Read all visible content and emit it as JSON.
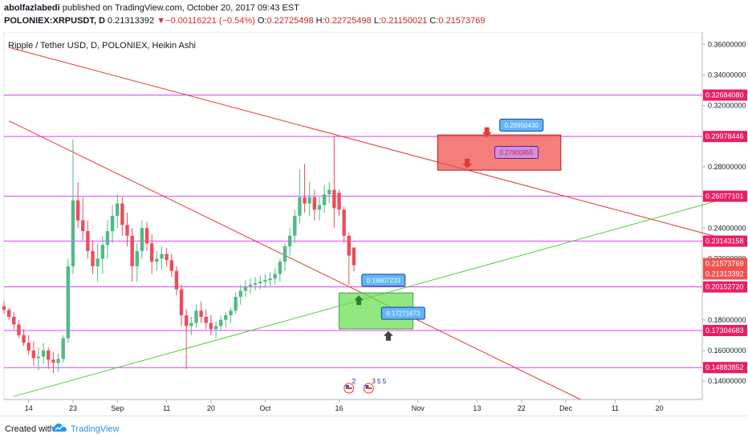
{
  "header": {
    "author": "abolfazlabedi",
    "published": "published on TradingView.com, October 20, 2017 09:43 EST",
    "symbol": "POLONIEX:XRPUSDT, D",
    "last": "0.21313392",
    "change_arrow": "▼",
    "change": "−0.00116221 (−0.54%)",
    "o_label": "O:",
    "o": "0.22725498",
    "h_label": "H:",
    "h": "0.22725498",
    "l_label": "L:",
    "l": "0.21150021",
    "c_label": "C:",
    "c": "0.21573769"
  },
  "footer": {
    "created_with": "Created with",
    "brand": "TradingView"
  },
  "colors": {
    "bull": "#53b987",
    "bear": "#eb4d5c",
    "hline": "#e040fb",
    "trend_red": "#e53935",
    "trend_green": "#4cd137",
    "label_blue": "#2196f3",
    "label_purple": "#ab47bc",
    "label_red": "#ef5350"
  },
  "chart_data": {
    "type": "candlestick",
    "title": "Ripple / Tether USD, D, POLONIEX, Heikin Ashi",
    "y_axis_ticks": [
      "0.36000000",
      "0.34000000",
      "0.32000000",
      "0.28000000",
      "0.26000000",
      "0.24000000",
      "0.22000000",
      "0.18000000",
      "0.16000000",
      "0.14000000"
    ],
    "y_axis_tick_values": [
      0.36,
      0.34,
      0.32,
      0.28,
      0.26,
      0.24,
      0.22,
      0.18,
      0.16,
      0.14
    ],
    "x_axis_ticks": [
      "14",
      "23",
      "Sep",
      "11",
      "20",
      "Oct",
      "16",
      "Nov",
      "13",
      "22",
      "Dec",
      "11",
      "20"
    ],
    "x_axis_tick_dates": [
      "2017-08-14",
      "2017-08-23",
      "2017-09-01",
      "2017-09-11",
      "2017-09-20",
      "2017-10-01",
      "2017-10-16",
      "2017-11-01",
      "2017-11-13",
      "2017-11-22",
      "2017-12-01",
      "2017-12-11",
      "2017-12-20"
    ],
    "ylim": [
      0.128,
      0.368
    ],
    "horizontal_levels": [
      {
        "value": 0.3268408,
        "label": "0.32684080"
      },
      {
        "value": 0.29978446,
        "label": "0.29978446"
      },
      {
        "value": 0.26077101,
        "label": "0.26077101"
      },
      {
        "value": 0.23143158,
        "label": "0.23143158"
      },
      {
        "value": 0.2015272,
        "label": "0.20152720"
      },
      {
        "value": 0.17304683,
        "label": "0.17304683"
      },
      {
        "value": 0.14883852,
        "label": "0.14883852"
      }
    ],
    "price_labels": [
      {
        "value": 0.21573769,
        "label": "0.21573769",
        "kind": "close"
      },
      {
        "value": 0.21313392,
        "label": "0.21313392",
        "kind": "last"
      }
    ],
    "trendlines": [
      {
        "color": "red",
        "from": {
          "date": "2017-08-10",
          "value": 0.358
        },
        "to": {
          "date": "2018-01-01",
          "value": 0.234
        }
      },
      {
        "color": "red",
        "from": {
          "date": "2017-08-10",
          "value": 0.31
        },
        "to": {
          "date": "2017-12-04",
          "value": 0.128
        }
      },
      {
        "color": "green",
        "from": {
          "date": "2017-08-11",
          "value": 0.13
        },
        "to": {
          "date": "2018-01-01",
          "value": 0.258
        }
      }
    ],
    "zones": [
      {
        "color": "red",
        "from": {
          "date": "2017-11-05",
          "value": 0.3008
        },
        "to": {
          "date": "2017-11-30",
          "value": 0.2778
        }
      },
      {
        "color": "green",
        "from": {
          "date": "2017-10-16",
          "value": 0.1976
        },
        "to": {
          "date": "2017-10-31",
          "value": 0.1741
        }
      }
    ],
    "callouts": [
      {
        "text": "0.29950430",
        "style": "blue",
        "at": {
          "date": "2017-11-22",
          "value": 0.3072
        }
      },
      {
        "text": "0.27900855",
        "style": "purple",
        "at": {
          "date": "2017-11-21",
          "value": 0.2894
        }
      },
      {
        "text": "0.19607233",
        "style": "blue",
        "at": {
          "date": "2017-10-25",
          "value": 0.2059
        }
      },
      {
        "text": "0.17271673",
        "style": "blue",
        "at": {
          "date": "2017-10-29",
          "value": 0.1843
        }
      }
    ],
    "markers": [
      {
        "dir": "down",
        "color": "red",
        "date": "2017-11-15",
        "value": 0.2995
      },
      {
        "dir": "down",
        "color": "red",
        "date": "2017-11-11",
        "value": 0.279
      },
      {
        "dir": "up",
        "color": "green",
        "date": "2017-10-20",
        "value": 0.196
      },
      {
        "dir": "up",
        "color": "dark",
        "date": "2017-10-26",
        "value": 0.1727
      }
    ],
    "event_badges": [
      {
        "date": "2017-10-18",
        "text": "2"
      },
      {
        "date": "2017-10-22",
        "text": "3 5 5"
      }
    ],
    "candles": [
      {
        "d": "2017-08-09",
        "o": 0.189,
        "h": 0.192,
        "l": 0.184,
        "c": 0.1865
      },
      {
        "d": "2017-08-10",
        "o": 0.1865,
        "h": 0.188,
        "l": 0.18,
        "c": 0.182
      },
      {
        "d": "2017-08-11",
        "o": 0.182,
        "h": 0.185,
        "l": 0.174,
        "c": 0.177
      },
      {
        "d": "2017-08-12",
        "o": 0.177,
        "h": 0.18,
        "l": 0.168,
        "c": 0.17
      },
      {
        "d": "2017-08-13",
        "o": 0.17,
        "h": 0.174,
        "l": 0.163,
        "c": 0.165
      },
      {
        "d": "2017-08-14",
        "o": 0.165,
        "h": 0.17,
        "l": 0.157,
        "c": 0.16
      },
      {
        "d": "2017-08-15",
        "o": 0.16,
        "h": 0.166,
        "l": 0.15,
        "c": 0.155
      },
      {
        "d": "2017-08-16",
        "o": 0.155,
        "h": 0.162,
        "l": 0.147,
        "c": 0.156
      },
      {
        "d": "2017-08-17",
        "o": 0.156,
        "h": 0.165,
        "l": 0.151,
        "c": 0.16
      },
      {
        "d": "2017-08-18",
        "o": 0.16,
        "h": 0.162,
        "l": 0.148,
        "c": 0.154
      },
      {
        "d": "2017-08-19",
        "o": 0.154,
        "h": 0.159,
        "l": 0.145,
        "c": 0.152
      },
      {
        "d": "2017-08-20",
        "o": 0.152,
        "h": 0.158,
        "l": 0.146,
        "c": 0.1545
      },
      {
        "d": "2017-08-21",
        "o": 0.1545,
        "h": 0.17,
        "l": 0.152,
        "c": 0.168
      },
      {
        "d": "2017-08-22",
        "o": 0.168,
        "h": 0.22,
        "l": 0.165,
        "c": 0.215
      },
      {
        "d": "2017-08-23",
        "o": 0.215,
        "h": 0.298,
        "l": 0.21,
        "c": 0.258
      },
      {
        "d": "2017-08-24",
        "o": 0.258,
        "h": 0.27,
        "l": 0.24,
        "c": 0.245
      },
      {
        "d": "2017-08-25",
        "o": 0.245,
        "h": 0.26,
        "l": 0.232,
        "c": 0.238
      },
      {
        "d": "2017-08-26",
        "o": 0.238,
        "h": 0.245,
        "l": 0.22,
        "c": 0.225
      },
      {
        "d": "2017-08-27",
        "o": 0.225,
        "h": 0.232,
        "l": 0.21,
        "c": 0.215
      },
      {
        "d": "2017-08-28",
        "o": 0.215,
        "h": 0.23,
        "l": 0.205,
        "c": 0.22
      },
      {
        "d": "2017-08-29",
        "o": 0.22,
        "h": 0.235,
        "l": 0.21,
        "c": 0.229
      },
      {
        "d": "2017-08-30",
        "o": 0.229,
        "h": 0.245,
        "l": 0.22,
        "c": 0.238
      },
      {
        "d": "2017-08-31",
        "o": 0.238,
        "h": 0.255,
        "l": 0.23,
        "c": 0.248
      },
      {
        "d": "2017-09-01",
        "o": 0.248,
        "h": 0.262,
        "l": 0.24,
        "c": 0.256
      },
      {
        "d": "2017-09-02",
        "o": 0.256,
        "h": 0.26,
        "l": 0.235,
        "c": 0.242
      },
      {
        "d": "2017-09-03",
        "o": 0.242,
        "h": 0.25,
        "l": 0.228,
        "c": 0.235
      },
      {
        "d": "2017-09-04",
        "o": 0.235,
        "h": 0.24,
        "l": 0.205,
        "c": 0.215
      },
      {
        "d": "2017-09-05",
        "o": 0.215,
        "h": 0.23,
        "l": 0.205,
        "c": 0.225
      },
      {
        "d": "2017-09-06",
        "o": 0.225,
        "h": 0.245,
        "l": 0.22,
        "c": 0.24
      },
      {
        "d": "2017-09-07",
        "o": 0.24,
        "h": 0.244,
        "l": 0.225,
        "c": 0.23
      },
      {
        "d": "2017-09-08",
        "o": 0.23,
        "h": 0.236,
        "l": 0.21,
        "c": 0.218
      },
      {
        "d": "2017-09-09",
        "o": 0.218,
        "h": 0.225,
        "l": 0.212,
        "c": 0.22
      },
      {
        "d": "2017-09-10",
        "o": 0.22,
        "h": 0.228,
        "l": 0.213,
        "c": 0.223
      },
      {
        "d": "2017-09-11",
        "o": 0.223,
        "h": 0.227,
        "l": 0.215,
        "c": 0.219
      },
      {
        "d": "2017-09-12",
        "o": 0.219,
        "h": 0.223,
        "l": 0.208,
        "c": 0.212
      },
      {
        "d": "2017-09-13",
        "o": 0.212,
        "h": 0.215,
        "l": 0.196,
        "c": 0.2
      },
      {
        "d": "2017-09-14",
        "o": 0.2,
        "h": 0.203,
        "l": 0.176,
        "c": 0.183
      },
      {
        "d": "2017-09-15",
        "o": 0.183,
        "h": 0.187,
        "l": 0.148,
        "c": 0.176
      },
      {
        "d": "2017-09-16",
        "o": 0.176,
        "h": 0.182,
        "l": 0.17,
        "c": 0.178
      },
      {
        "d": "2017-09-17",
        "o": 0.178,
        "h": 0.19,
        "l": 0.175,
        "c": 0.186
      },
      {
        "d": "2017-09-18",
        "o": 0.186,
        "h": 0.192,
        "l": 0.178,
        "c": 0.182
      },
      {
        "d": "2017-09-19",
        "o": 0.182,
        "h": 0.187,
        "l": 0.174,
        "c": 0.178
      },
      {
        "d": "2017-09-20",
        "o": 0.178,
        "h": 0.183,
        "l": 0.17,
        "c": 0.174
      },
      {
        "d": "2017-09-21",
        "o": 0.174,
        "h": 0.179,
        "l": 0.168,
        "c": 0.176
      },
      {
        "d": "2017-09-22",
        "o": 0.176,
        "h": 0.183,
        "l": 0.173,
        "c": 0.18
      },
      {
        "d": "2017-09-23",
        "o": 0.18,
        "h": 0.185,
        "l": 0.175,
        "c": 0.183
      },
      {
        "d": "2017-09-24",
        "o": 0.183,
        "h": 0.188,
        "l": 0.178,
        "c": 0.186
      },
      {
        "d": "2017-09-25",
        "o": 0.186,
        "h": 0.198,
        "l": 0.184,
        "c": 0.195
      },
      {
        "d": "2017-09-26",
        "o": 0.195,
        "h": 0.203,
        "l": 0.19,
        "c": 0.199
      },
      {
        "d": "2017-09-27",
        "o": 0.199,
        "h": 0.206,
        "l": 0.195,
        "c": 0.202
      },
      {
        "d": "2017-09-28",
        "o": 0.202,
        "h": 0.207,
        "l": 0.197,
        "c": 0.203
      },
      {
        "d": "2017-09-29",
        "o": 0.203,
        "h": 0.208,
        "l": 0.199,
        "c": 0.204
      },
      {
        "d": "2017-09-30",
        "o": 0.204,
        "h": 0.209,
        "l": 0.2,
        "c": 0.205
      },
      {
        "d": "2017-10-01",
        "o": 0.205,
        "h": 0.21,
        "l": 0.201,
        "c": 0.206
      },
      {
        "d": "2017-10-02",
        "o": 0.206,
        "h": 0.211,
        "l": 0.202,
        "c": 0.207
      },
      {
        "d": "2017-10-03",
        "o": 0.207,
        "h": 0.214,
        "l": 0.203,
        "c": 0.21
      },
      {
        "d": "2017-10-04",
        "o": 0.21,
        "h": 0.22,
        "l": 0.205,
        "c": 0.218
      },
      {
        "d": "2017-10-05",
        "o": 0.218,
        "h": 0.23,
        "l": 0.212,
        "c": 0.228
      },
      {
        "d": "2017-10-06",
        "o": 0.228,
        "h": 0.24,
        "l": 0.222,
        "c": 0.235
      },
      {
        "d": "2017-10-07",
        "o": 0.235,
        "h": 0.252,
        "l": 0.23,
        "c": 0.248
      },
      {
        "d": "2017-10-08",
        "o": 0.248,
        "h": 0.278,
        "l": 0.243,
        "c": 0.26
      },
      {
        "d": "2017-10-09",
        "o": 0.26,
        "h": 0.282,
        "l": 0.25,
        "c": 0.256
      },
      {
        "d": "2017-10-10",
        "o": 0.256,
        "h": 0.27,
        "l": 0.248,
        "c": 0.26
      },
      {
        "d": "2017-10-11",
        "o": 0.26,
        "h": 0.265,
        "l": 0.245,
        "c": 0.252
      },
      {
        "d": "2017-10-12",
        "o": 0.252,
        "h": 0.26,
        "l": 0.245,
        "c": 0.255
      },
      {
        "d": "2017-10-13",
        "o": 0.255,
        "h": 0.268,
        "l": 0.25,
        "c": 0.262
      },
      {
        "d": "2017-10-14",
        "o": 0.262,
        "h": 0.27,
        "l": 0.256,
        "c": 0.265
      },
      {
        "d": "2017-10-15",
        "o": 0.265,
        "h": 0.3,
        "l": 0.24,
        "c": 0.253
      },
      {
        "d": "2017-10-16",
        "o": 0.263,
        "h": 0.265,
        "l": 0.248,
        "c": 0.252
      },
      {
        "d": "2017-10-17",
        "o": 0.252,
        "h": 0.254,
        "l": 0.23,
        "c": 0.235
      },
      {
        "d": "2017-10-18",
        "o": 0.235,
        "h": 0.237,
        "l": 0.203,
        "c": 0.222
      },
      {
        "d": "2017-10-19",
        "o": 0.2273,
        "h": 0.2273,
        "l": 0.2115,
        "c": 0.2157
      }
    ]
  }
}
